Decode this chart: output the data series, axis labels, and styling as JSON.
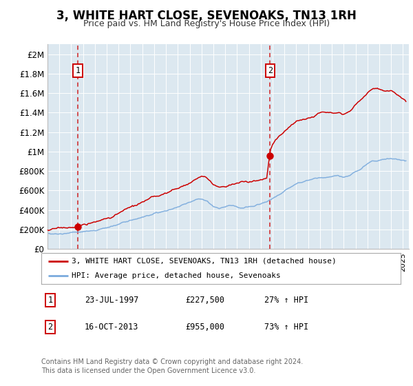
{
  "title": "3, WHITE HART CLOSE, SEVENOAKS, TN13 1RH",
  "subtitle": "Price paid vs. HM Land Registry's House Price Index (HPI)",
  "title_fontsize": 12,
  "subtitle_fontsize": 9,
  "xlim": [
    1995.0,
    2025.5
  ],
  "ylim": [
    0,
    2100000
  ],
  "yticks": [
    0,
    200000,
    400000,
    600000,
    800000,
    1000000,
    1200000,
    1400000,
    1600000,
    1800000,
    2000000
  ],
  "ytick_labels": [
    "£0",
    "£200K",
    "£400K",
    "£600K",
    "£800K",
    "£1M",
    "£1.2M",
    "£1.4M",
    "£1.6M",
    "£1.8M",
    "£2M"
  ],
  "red_color": "#cc0000",
  "blue_color": "#7aaadd",
  "plot_bg_color": "#dce8f0",
  "grid_color": "#ffffff",
  "sale1_x": 1997.55,
  "sale1_y": 227500,
  "sale2_x": 2013.79,
  "sale2_y": 955000,
  "sale1_date": "23-JUL-1997",
  "sale1_price": "£227,500",
  "sale1_hpi": "27% ↑ HPI",
  "sale2_date": "16-OCT-2013",
  "sale2_price": "£955,000",
  "sale2_hpi": "73% ↑ HPI",
  "legend_red_label": "3, WHITE HART CLOSE, SEVENOAKS, TN13 1RH (detached house)",
  "legend_blue_label": "HPI: Average price, detached house, Sevenoaks",
  "footer_line1": "Contains HM Land Registry data © Crown copyright and database right 2024.",
  "footer_line2": "This data is licensed under the Open Government Licence v3.0."
}
